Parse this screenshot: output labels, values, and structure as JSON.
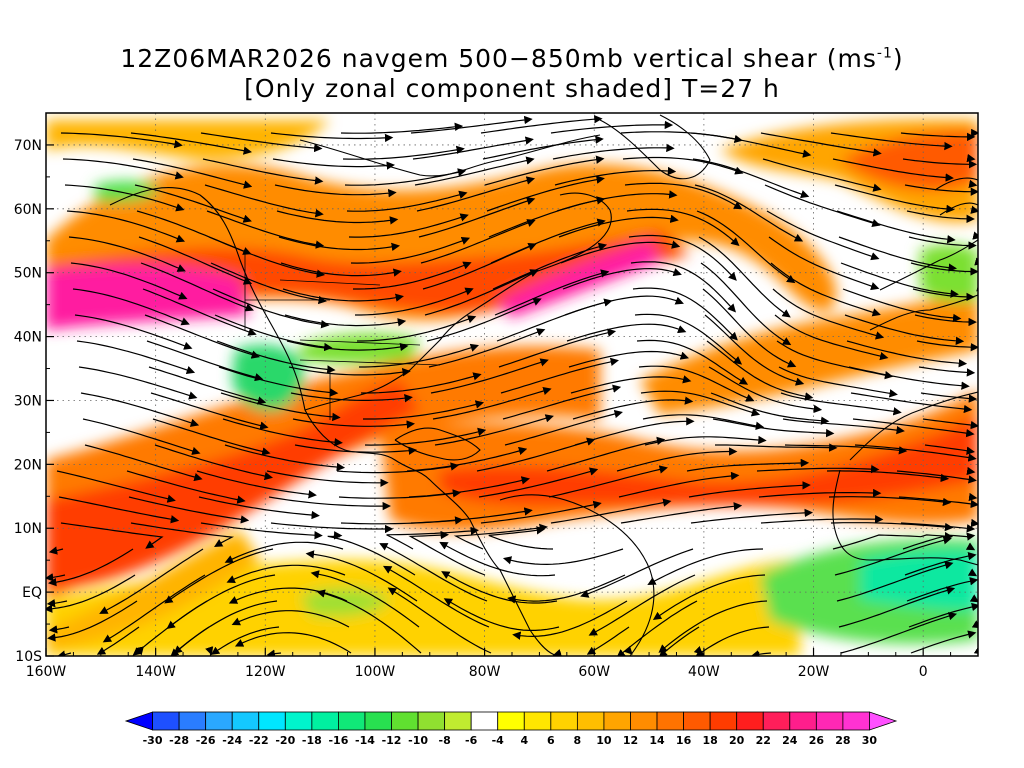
{
  "title": {
    "line1": "12Z06MAR2026 navgem 500−850mb vertical shear (ms",
    "line1_sup": "-1",
    "line1_tail": ")",
    "line2": "[Only zonal component shaded] T=27 h"
  },
  "map": {
    "lon_range": [
      -160,
      10
    ],
    "lat_range": [
      -10,
      75
    ],
    "lat_labels": [
      {
        "lat": 70,
        "text": "70N"
      },
      {
        "lat": 60,
        "text": "60N"
      },
      {
        "lat": 50,
        "text": "50N"
      },
      {
        "lat": 40,
        "text": "40N"
      },
      {
        "lat": 30,
        "text": "30N"
      },
      {
        "lat": 20,
        "text": "20N"
      },
      {
        "lat": 10,
        "text": "10N"
      },
      {
        "lat": 0,
        "text": "EQ"
      },
      {
        "lat": -10,
        "text": "10S"
      }
    ],
    "lon_labels": [
      {
        "lon": -160,
        "text": "160W"
      },
      {
        "lon": -140,
        "text": "140W"
      },
      {
        "lon": -120,
        "text": "120W"
      },
      {
        "lon": -100,
        "text": "100W"
      },
      {
        "lon": -80,
        "text": "80W"
      },
      {
        "lon": -60,
        "text": "60W"
      },
      {
        "lon": -40,
        "text": "40W"
      },
      {
        "lon": -20,
        "text": "20W"
      },
      {
        "lon": 0,
        "text": "0"
      }
    ],
    "grid": "dotted, every 10 degrees",
    "shaded_field": "zonal component of 500-850mb shear",
    "overlay": "streamlines with arrowheads"
  },
  "colorbar": {
    "labels": [
      "-30",
      "-28",
      "-26",
      "-24",
      "-22",
      "-20",
      "-18",
      "-16",
      "-14",
      "-12",
      "-10",
      "-8",
      "-6",
      "-4",
      "4",
      "6",
      "8",
      "10",
      "12",
      "14",
      "16",
      "18",
      "20",
      "22",
      "24",
      "26",
      "28",
      "30"
    ],
    "colors": [
      "#0000ff",
      "#1e50ff",
      "#2a7dff",
      "#2aa8ff",
      "#14c8ff",
      "#00e6ff",
      "#00f5cc",
      "#00f0a0",
      "#10e878",
      "#28e050",
      "#60e030",
      "#90e030",
      "#c0ec30",
      "#ffffff",
      "#ffff00",
      "#ffe600",
      "#ffd200",
      "#ffbe00",
      "#ffa500",
      "#ff8c00",
      "#ff7300",
      "#ff5a00",
      "#ff3c00",
      "#ff1e1e",
      "#ff1e5a",
      "#ff1e8c",
      "#ff28b4",
      "#ff32d2",
      "#ff50ff"
    ]
  }
}
